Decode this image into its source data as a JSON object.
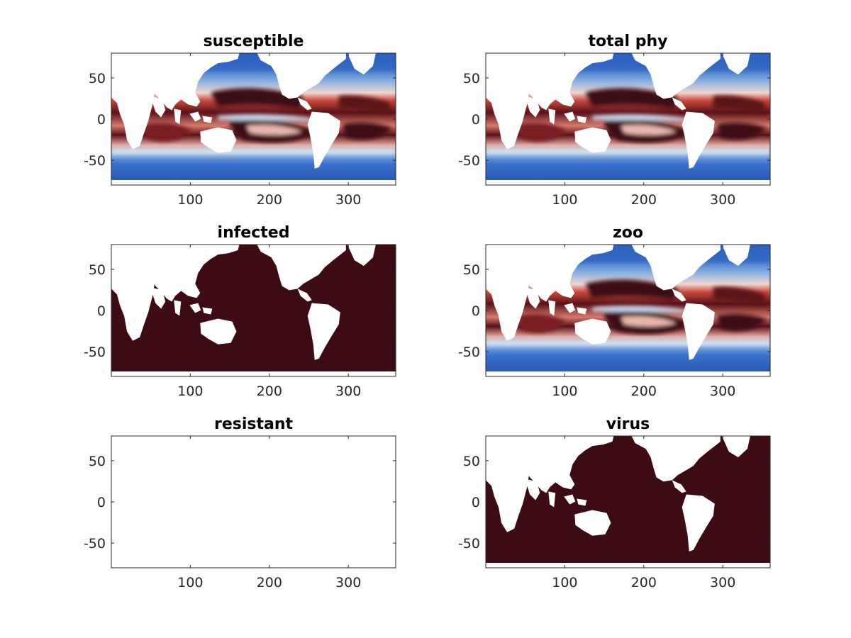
{
  "chart_data": [
    {
      "type": "heatmap",
      "title": "susceptible",
      "xlabel": "",
      "ylabel": "",
      "xlim": [
        0,
        360
      ],
      "ylim": [
        -80,
        80
      ],
      "xticks": [
        100,
        200,
        300
      ],
      "yticks": [
        50,
        0,
        -50
      ],
      "xtick_labels": [
        "100",
        "200",
        "300"
      ],
      "ytick_labels": [
        "50",
        "0",
        "-50"
      ],
      "field": "diverging",
      "colormap": [
        "#2b5fbf",
        "#6f9bd6",
        "#ffffff",
        "#d9786b",
        "#3d0b14"
      ],
      "land_color": "#ffffff",
      "description_values": {
        "tropical": 1.0,
        "subtropical": 0.6,
        "polar": -0.9
      },
      "grid": false
    },
    {
      "type": "heatmap",
      "title": "total phy",
      "xlabel": "",
      "ylabel": "",
      "xlim": [
        0,
        360
      ],
      "ylim": [
        -80,
        80
      ],
      "xticks": [
        100,
        200,
        300
      ],
      "yticks": [
        50,
        0,
        -50
      ],
      "xtick_labels": [
        "100",
        "200",
        "300"
      ],
      "ytick_labels": [
        "50",
        "0",
        "-50"
      ],
      "field": "diverging",
      "colormap": [
        "#2b5fbf",
        "#6f9bd6",
        "#ffffff",
        "#d9786b",
        "#3d0b14"
      ],
      "land_color": "#ffffff",
      "grid": false
    },
    {
      "type": "heatmap",
      "title": "infected",
      "xlabel": "",
      "ylabel": "",
      "xlim": [
        0,
        360
      ],
      "ylim": [
        -80,
        80
      ],
      "xticks": [
        100,
        200,
        300
      ],
      "yticks": [
        50,
        0,
        -50
      ],
      "xtick_labels": [
        "100",
        "200",
        "300"
      ],
      "ytick_labels": [
        "50",
        "0",
        "-50"
      ],
      "field": "uniform",
      "colormap": [
        "#3d0b14"
      ],
      "land_color": "#ffffff",
      "grid": false
    },
    {
      "type": "heatmap",
      "title": "zoo",
      "xlabel": "",
      "ylabel": "",
      "xlim": [
        0,
        360
      ],
      "ylim": [
        -80,
        80
      ],
      "xticks": [
        100,
        200,
        300
      ],
      "yticks": [
        50,
        0,
        -50
      ],
      "xtick_labels": [
        "100",
        "200",
        "300"
      ],
      "ytick_labels": [
        "50",
        "0",
        "-50"
      ],
      "field": "diverging",
      "colormap": [
        "#2b5fbf",
        "#6f9bd6",
        "#ffffff",
        "#d9786b",
        "#3d0b14"
      ],
      "land_color": "#ffffff",
      "grid": false
    },
    {
      "type": "heatmap",
      "title": "resistant",
      "xlabel": "",
      "ylabel": "",
      "xlim": [
        0,
        360
      ],
      "ylim": [
        -80,
        80
      ],
      "xticks": [
        100,
        200,
        300
      ],
      "yticks": [
        50,
        0,
        -50
      ],
      "xtick_labels": [
        "100",
        "200",
        "300"
      ],
      "ytick_labels": [
        "50",
        "0",
        "-50"
      ],
      "field": "empty",
      "colormap": [],
      "land_color": "#ffffff",
      "grid": false
    },
    {
      "type": "heatmap",
      "title": "virus",
      "xlabel": "",
      "ylabel": "",
      "xlim": [
        0,
        360
      ],
      "ylim": [
        -80,
        80
      ],
      "xticks": [
        100,
        200,
        300
      ],
      "yticks": [
        50,
        0,
        -50
      ],
      "xtick_labels": [
        "100",
        "200",
        "300"
      ],
      "ytick_labels": [
        "50",
        "0",
        "-50"
      ],
      "field": "uniform",
      "colormap": [
        "#3d0b14"
      ],
      "land_color": "#ffffff",
      "grid": false
    }
  ]
}
